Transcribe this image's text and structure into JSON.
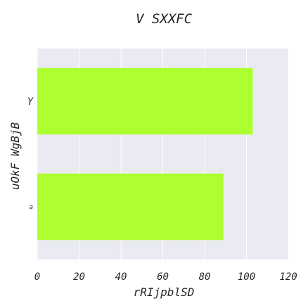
{
  "chart_data": {
    "type": "bar",
    "orientation": "horizontal",
    "title": "V  SXXFC",
    "xlabel": "rRIjpblSD",
    "ylabel": "uOkF WgBjB",
    "categories": [
      "Y",
      "a"
    ],
    "values": [
      103,
      89
    ],
    "xlim": [
      0,
      120
    ],
    "xticks": [
      "0",
      "20",
      "40",
      "60",
      "80",
      "100",
      "120"
    ],
    "grid": true,
    "colors": {
      "bar": "#adff2f",
      "plot_bg": "#eaeaf2",
      "grid": "#ffffff"
    }
  }
}
